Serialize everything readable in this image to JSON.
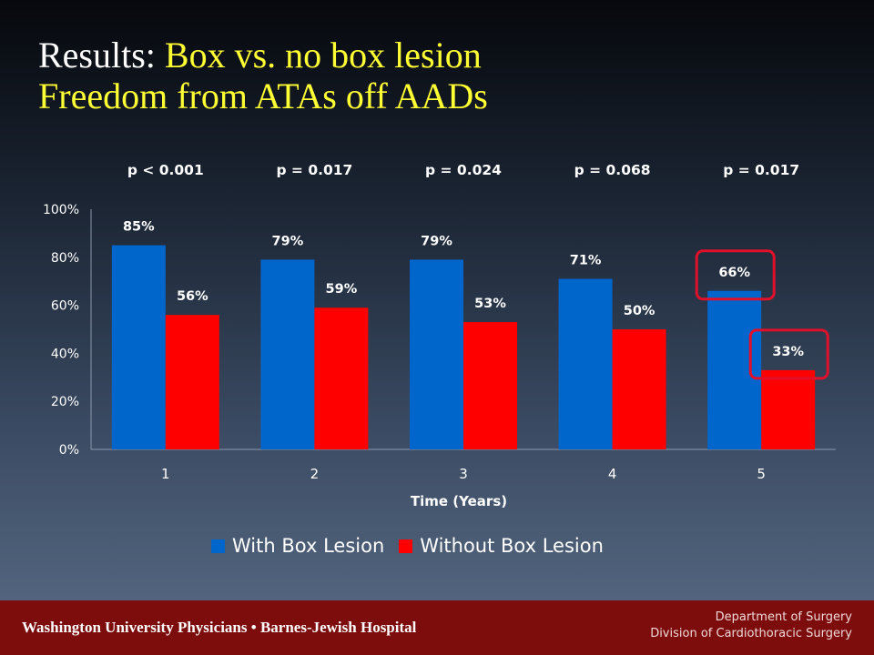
{
  "slide": {
    "title_line1_prefix": "Results: ",
    "title_line1_highlight": "Box vs. no box lesion",
    "title_line2": "Freedom from ATAs off AADs"
  },
  "p_values": [
    "p < 0.001",
    "p = 0.017",
    "p = 0.024",
    "p = 0.068",
    "p = 0.017"
  ],
  "chart_data": {
    "type": "bar",
    "title": "",
    "xlabel": "Time (Years)",
    "ylabel": "",
    "categories": [
      "1",
      "2",
      "3",
      "4",
      "5"
    ],
    "ylim": [
      0,
      100
    ],
    "yticks": [
      "0%",
      "20%",
      "40%",
      "60%",
      "80%",
      "100%"
    ],
    "yunit": "%",
    "series": [
      {
        "name": "With Box Lesion",
        "values": [
          85,
          79,
          79,
          71,
          66
        ],
        "labels": [
          "85%",
          "79%",
          "79%",
          "71%",
          "66%"
        ],
        "color": "#0066cc"
      },
      {
        "name": "Without Box Lesion",
        "values": [
          56,
          59,
          53,
          50,
          33
        ],
        "labels": [
          "56%",
          "59%",
          "53%",
          "50%",
          "33%"
        ],
        "color": "#ff0000"
      }
    ],
    "highlight_color": "#e0102a",
    "grid": false,
    "legend_position": "bottom"
  },
  "footer": {
    "organization": "Washington University Physicians • Barnes-Jewish Hospital",
    "department": "Department of Surgery",
    "division": "Division of Cardiothoracic Surgery"
  }
}
